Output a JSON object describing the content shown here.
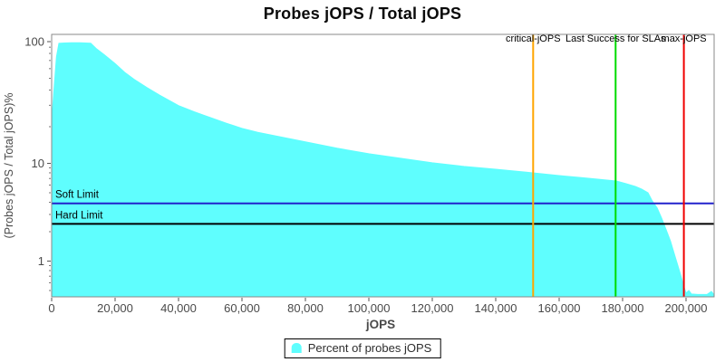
{
  "title": "Probes jOPS / Total jOPS",
  "legend": {
    "label": "Percent of probes jOPS",
    "swatch_color": "#5FFEFE"
  },
  "colors": {
    "area_fill": "#5FFEFE",
    "plot_border": "#888888",
    "tick_text": "#4a4a4a",
    "critical_jops_line": "#FFA500",
    "last_success_line": "#00DC00",
    "max_jops_line": "#F00000",
    "soft_limit_line": "#2222CC",
    "hard_limit_line": "#000000"
  },
  "chart_data": {
    "type": "area",
    "title": "Probes jOPS / Total jOPS",
    "xlabel": "jOPS",
    "ylabel": "(Probes jOPS / Total jOPS)%",
    "legend_position": "bottom",
    "grid": false,
    "x_axis": {
      "min": 0,
      "max": 208900,
      "ticks": [
        {
          "value": 0,
          "label": "0"
        },
        {
          "value": 20000,
          "label": "20,000"
        },
        {
          "value": 40000,
          "label": "40,000"
        },
        {
          "value": 60000,
          "label": "60,000"
        },
        {
          "value": 80000,
          "label": "80,000"
        },
        {
          "value": 100000,
          "label": "100,000"
        },
        {
          "value": 120000,
          "label": "120,000"
        },
        {
          "value": 140000,
          "label": "140,000"
        },
        {
          "value": 160000,
          "label": "160,000"
        },
        {
          "value": 180000,
          "label": "180,000"
        },
        {
          "value": 200000,
          "label": "200,000"
        }
      ]
    },
    "y_axis": {
      "scale": "log",
      "min": 0.43,
      "max": 110,
      "ticks": [
        {
          "value": 100,
          "label": "100"
        },
        {
          "value": 10,
          "label": "10"
        },
        {
          "value": 1,
          "label": "1"
        }
      ],
      "minor_ticks": [
        90,
        80,
        70,
        60,
        50,
        40,
        30,
        20,
        9,
        8,
        7,
        6,
        5,
        4,
        3,
        2,
        0.9,
        0.8,
        0.7,
        0.6,
        0.5
      ]
    },
    "series": [
      {
        "name": "Percent of probes jOPS",
        "color": "#5FFEFE",
        "points": [
          [
            0,
            22
          ],
          [
            700,
            40
          ],
          [
            1500,
            75
          ],
          [
            2300,
            97
          ],
          [
            4000,
            97.5
          ],
          [
            6000,
            98
          ],
          [
            9000,
            98
          ],
          [
            12300,
            97
          ],
          [
            14000,
            88
          ],
          [
            16600,
            78
          ],
          [
            20000,
            66
          ],
          [
            23000,
            56
          ],
          [
            26000,
            49
          ],
          [
            30000,
            42
          ],
          [
            34000,
            36.4
          ],
          [
            40000,
            29.8
          ],
          [
            45000,
            26.5
          ],
          [
            50000,
            23.8
          ],
          [
            55000,
            21.4
          ],
          [
            60000,
            19.4
          ],
          [
            65000,
            18
          ],
          [
            70000,
            16.9
          ],
          [
            80000,
            15
          ],
          [
            90000,
            13.3
          ],
          [
            100000,
            12
          ],
          [
            110000,
            11
          ],
          [
            120000,
            10.1
          ],
          [
            130000,
            9.3
          ],
          [
            140000,
            8.7
          ],
          [
            150000,
            8.1
          ],
          [
            160000,
            7.5
          ],
          [
            170000,
            7.0
          ],
          [
            178000,
            6.6
          ],
          [
            181000,
            6.2
          ],
          [
            184000,
            5.8
          ],
          [
            186000,
            5.45
          ],
          [
            188000,
            5.0
          ],
          [
            189400,
            4.1
          ],
          [
            190900,
            3.5
          ],
          [
            192300,
            2.75
          ],
          [
            193700,
            2.1
          ],
          [
            195100,
            1.6
          ],
          [
            196600,
            1.1
          ],
          [
            198000,
            0.78
          ],
          [
            199100,
            0.58
          ],
          [
            200000,
            0.47
          ],
          [
            200900,
            0.5
          ],
          [
            201700,
            0.46
          ],
          [
            203700,
            0.455
          ],
          [
            206600,
            0.455
          ],
          [
            208000,
            0.49
          ],
          [
            208900,
            0.45
          ]
        ]
      }
    ],
    "vertical_markers": [
      {
        "label": "critical-jOPS",
        "jops": 151800,
        "color": "#FFA500"
      },
      {
        "label": "Last Success for SLAs",
        "jops": 177800,
        "color": "#00DC00"
      },
      {
        "label": "max-jOPS",
        "jops": 199300,
        "color": "#F00000"
      }
    ],
    "horizontal_markers": [
      {
        "label": "Soft Limit",
        "percent": 3.9,
        "color": "#2222CC"
      },
      {
        "label": "Hard Limit",
        "percent": 2.4,
        "color": "#000000"
      }
    ]
  }
}
